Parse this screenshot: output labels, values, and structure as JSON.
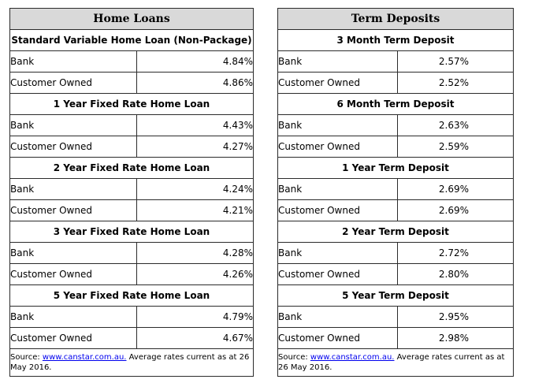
{
  "home_loans": {
    "title": "Home Loans",
    "sections": [
      {
        "heading": "Standard Variable Home Loan (Non-Package)",
        "rows": [
          {
            "label": "Bank",
            "value": "4.84%"
          },
          {
            "label": "Customer Owned",
            "value": "4.86%"
          }
        ]
      },
      {
        "heading": "1 Year Fixed Rate Home Loan",
        "rows": [
          {
            "label": "Bank",
            "value": "4.43%"
          },
          {
            "label": "Customer Owned",
            "value": "4.27%"
          }
        ]
      },
      {
        "heading": "2 Year Fixed Rate Home Loan",
        "rows": [
          {
            "label": "Bank",
            "value": "4.24%"
          },
          {
            "label": "Customer Owned",
            "value": "4.21%"
          }
        ]
      },
      {
        "heading": "3 Year Fixed Rate Home Loan",
        "rows": [
          {
            "label": "Bank",
            "value": "4.28%"
          },
          {
            "label": "Customer Owned",
            "value": "4.26%"
          }
        ]
      },
      {
        "heading": "5 Year Fixed Rate Home Loan",
        "rows": [
          {
            "label": "Bank",
            "value": "4.79%"
          },
          {
            "label": "Customer Owned",
            "value": "4.67%"
          }
        ]
      }
    ],
    "source": {
      "prefix": "Source: ",
      "link_text": "www.canstar.com.au.",
      "suffix": " Average rates current as at 26 May 2016."
    }
  },
  "term_deposits": {
    "title": "Term Deposits",
    "sections": [
      {
        "heading": "3 Month Term Deposit",
        "rows": [
          {
            "label": "Bank",
            "value": "2.57%"
          },
          {
            "label": "Customer Owned",
            "value": "2.52%"
          }
        ]
      },
      {
        "heading": "6 Month Term Deposit",
        "rows": [
          {
            "label": "Bank",
            "value": "2.63%"
          },
          {
            "label": "Customer Owned",
            "value": "2.59%"
          }
        ]
      },
      {
        "heading": "1 Year Term Deposit",
        "rows": [
          {
            "label": "Bank",
            "value": "2.69%"
          },
          {
            "label": "Customer Owned",
            "value": "2.69%"
          }
        ]
      },
      {
        "heading": "2 Year Term Deposit",
        "rows": [
          {
            "label": "Bank",
            "value": "2.72%"
          },
          {
            "label": "Customer Owned",
            "value": "2.80%"
          }
        ]
      },
      {
        "heading": "5 Year Term Deposit",
        "rows": [
          {
            "label": "Bank",
            "value": "2.95%"
          },
          {
            "label": "Customer Owned",
            "value": "2.98%"
          }
        ]
      }
    ],
    "source": {
      "prefix": "Source: ",
      "link_text": "www.canstar.com.au.",
      "suffix": " Average rates current as at 26 May 2016."
    }
  }
}
